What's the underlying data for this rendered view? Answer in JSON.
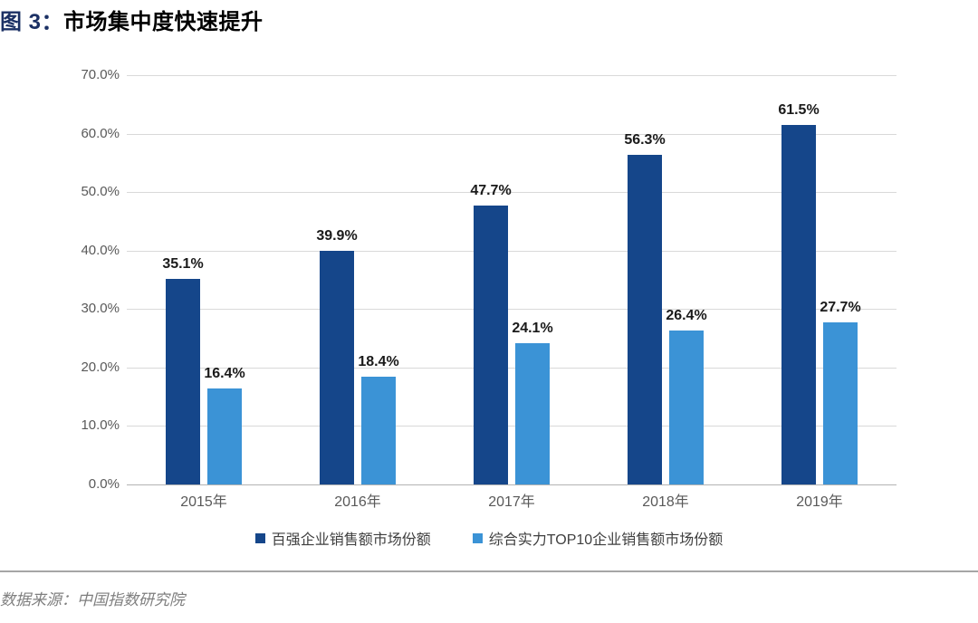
{
  "title": {
    "prefix": "图 3：",
    "text": "市场集中度快速提升"
  },
  "source": "数据来源：中国指数研究院",
  "colors": {
    "title_accent": "#1b3064",
    "series1": "#15468a",
    "series2": "#3b93d6",
    "axis_text": "#595959",
    "data_label": "#1a1a1a",
    "gridline": "#d9d9d9",
    "axis_line": "#b3b3b3",
    "divider": "#a6a6a6",
    "source_text": "#7f7f7f"
  },
  "chart_data": {
    "type": "bar",
    "title": "市场集中度快速提升",
    "categories": [
      "2015年",
      "2016年",
      "2017年",
      "2018年",
      "2019年"
    ],
    "series": [
      {
        "name": "百强企业销售额市场份额",
        "color": "#15468a",
        "values": [
          35.1,
          39.9,
          47.7,
          56.3,
          61.5
        ],
        "labels": [
          "35.1%",
          "39.9%",
          "47.7%",
          "56.3%",
          "61.5%"
        ]
      },
      {
        "name": "综合实力TOP10企业销售额市场份额",
        "color": "#3b93d6",
        "values": [
          16.4,
          18.4,
          24.1,
          26.4,
          27.7
        ],
        "labels": [
          "16.4%",
          "18.4%",
          "24.1%",
          "26.4%",
          "27.7%"
        ]
      }
    ],
    "xlabel": "",
    "ylabel": "",
    "ylim": [
      0,
      70
    ],
    "y_tick_step": 10,
    "y_tick_labels": [
      "0.0%",
      "10.0%",
      "20.0%",
      "30.0%",
      "40.0%",
      "50.0%",
      "60.0%",
      "70.0%"
    ],
    "grid": true,
    "legend_position": "bottom"
  }
}
